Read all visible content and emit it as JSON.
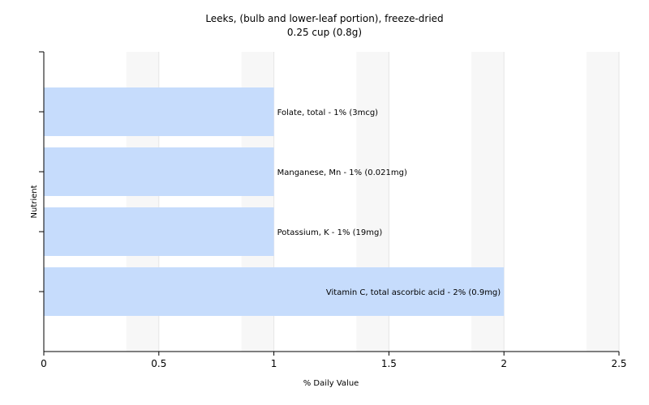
{
  "chart_data": {
    "type": "bar",
    "orientation": "horizontal",
    "title": "Leeks, (bulb and lower-leaf portion), freeze-dried",
    "subtitle": "0.25 cup (0.8g)",
    "xlabel": "% Daily Value",
    "ylabel": "Nutrient",
    "xlim": [
      0,
      2.5
    ],
    "x_ticks": [
      "0",
      "0.5",
      "1",
      "1.5",
      "2",
      "2.5"
    ],
    "x_tick_values": [
      0,
      0.5,
      1,
      1.5,
      2,
      2.5
    ],
    "grid": "vertical",
    "bar_color": "#c6dcfc",
    "categories": [
      "Folate, total",
      "Manganese, Mn",
      "Potassium, K",
      "Vitamin C, total ascorbic acid"
    ],
    "values": [
      1,
      1,
      1,
      2
    ],
    "data_labels": [
      "Folate, total - 1% (3mcg)",
      "Manganese, Mn - 1% (0.021mg)",
      "Potassium, K - 1% (19mg)",
      "Vitamin C, total ascorbic acid - 2% (0.9mg)"
    ]
  }
}
